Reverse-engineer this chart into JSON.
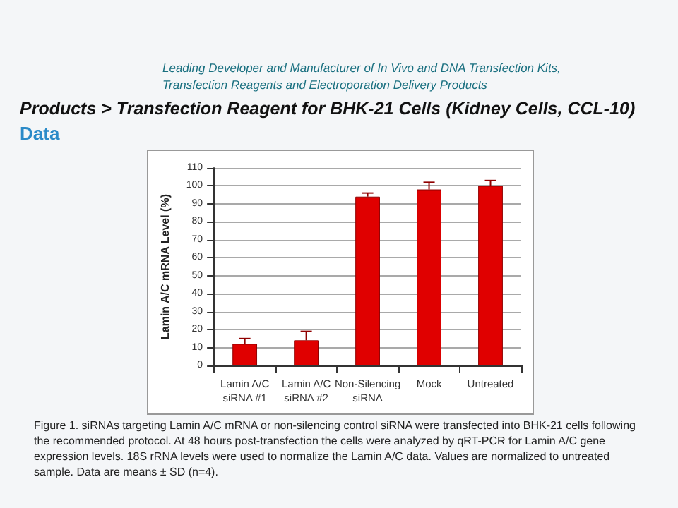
{
  "chart_data": {
    "type": "bar",
    "title": "Products > Transfection Reagent for BHK-21 Cells (Kidney Cells, CCL-10)",
    "subtitle": "Data",
    "ylabel": "Lamin A/C mRNA Level (%)",
    "categories": [
      "Lamin A/C\nsiRNA #1",
      "Lamin A/C\nsiRNA #2",
      "Non-Silencing\nsiRNA",
      "Mock",
      "Untreated"
    ],
    "values": [
      12,
      14,
      94,
      98,
      100
    ],
    "errors": [
      3,
      5,
      2,
      4,
      3
    ],
    "color": "#e00000",
    "ylim": [
      0,
      110
    ],
    "yticks": [
      0,
      10,
      20,
      30,
      40,
      50,
      60,
      70,
      80,
      90,
      100,
      110
    ],
    "grid": "y",
    "annotations": [
      "Leading Developer and Manufacturer of In Vivo and DNA Transfection Kits, Transfection Reagents and Electroporation Delivery Products",
      "Figure 1. siRNAs targeting Lamin A/C mRNA or non-silencing control siRNA were transfected into BHK-21 cells following the recommended protocol. At 48 hours post-transfection the cells were analyzed by qRT-PCR for Lamin A/C gene expression levels. 18S rRNA levels were used to normalize the Lamin A/C data. Values are normalized to untreated sample. Data are means ± SD (n=4)."
    ]
  }
}
